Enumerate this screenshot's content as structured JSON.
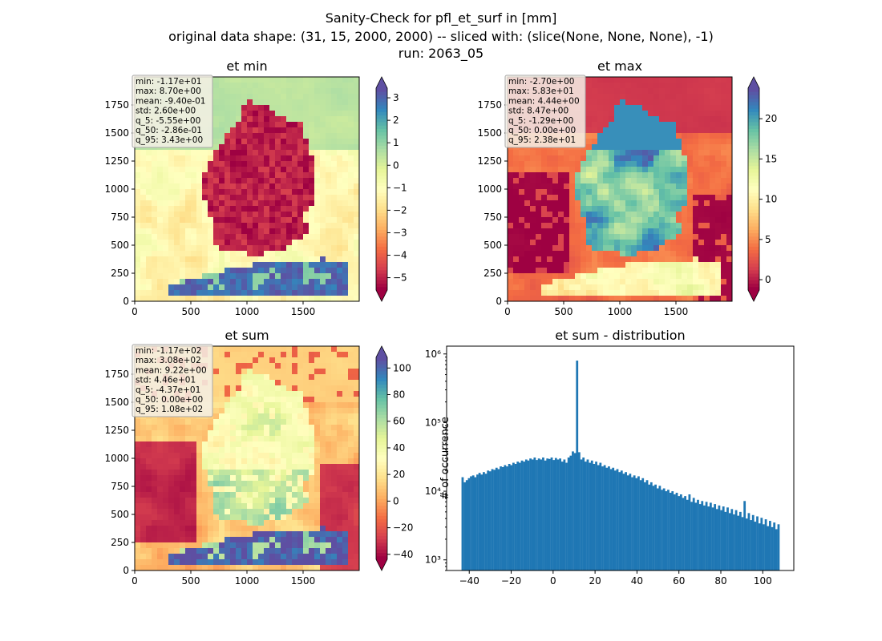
{
  "figure": {
    "title_lines": [
      "Sanity-Check for pfl_et_surf in [mm]",
      "original data shape: (31, 15, 2000, 2000) -- sliced with: (slice(None, None, None), -1)",
      "run: 2063_05"
    ]
  },
  "colors": {
    "spectral": [
      "#9e0142",
      "#d53e4f",
      "#f46d43",
      "#fdae61",
      "#fee08b",
      "#ffffbf",
      "#e6f598",
      "#abdda4",
      "#66c2a5",
      "#3288bd",
      "#5e4fa2"
    ],
    "histogram_bar": "#1f77b4",
    "stats_box_bg": "#f5f0e6"
  },
  "chart_data": [
    {
      "type": "heatmap",
      "title": "et min",
      "xlim": [
        0,
        2000
      ],
      "ylim": [
        0,
        2000
      ],
      "x_ticks": [
        "0",
        "500",
        "1000",
        "1500"
      ],
      "y_ticks": [
        "0",
        "250",
        "500",
        "750",
        "1000",
        "1250",
        "1500",
        "1750"
      ],
      "colorbar": {
        "min": -5.55,
        "max": 3.43,
        "extend": "both",
        "ticks": [
          "−5",
          "−4",
          "−3",
          "−2",
          "−1",
          "0",
          "1",
          "2",
          "3"
        ],
        "tick_values": [
          -5,
          -4,
          -3,
          -2,
          -1,
          0,
          1,
          2,
          3
        ]
      },
      "stats": [
        "min: -1.17e+01",
        "max: 8.70e+00",
        "mean: -9.40e-01",
        "std: 2.60e+00",
        "q_5: -5.55e+00",
        "q_50: -2.86e-01",
        "q_95: 3.43e+00"
      ],
      "pattern": "min"
    },
    {
      "type": "heatmap",
      "title": "et max",
      "xlim": [
        0,
        2000
      ],
      "ylim": [
        0,
        2000
      ],
      "x_ticks": [
        "0",
        "500",
        "1000",
        "1500"
      ],
      "y_ticks": [
        "0",
        "250",
        "500",
        "750",
        "1000",
        "1250",
        "1500",
        "1750"
      ],
      "colorbar": {
        "min": -1.29,
        "max": 23.8,
        "extend": "both",
        "ticks": [
          "0",
          "5",
          "10",
          "15",
          "20"
        ],
        "tick_values": [
          0,
          5,
          10,
          15,
          20
        ]
      },
      "stats": [
        "min: -2.70e+00",
        "max: 5.83e+01",
        "mean: 4.44e+00",
        "std: 8.47e+00",
        "q_5: -1.29e+00",
        "q_50: 0.00e+00",
        "q_95: 2.38e+01"
      ],
      "pattern": "max"
    },
    {
      "type": "heatmap",
      "title": "et sum",
      "xlim": [
        0,
        2000
      ],
      "ylim": [
        0,
        2000
      ],
      "x_ticks": [
        "0",
        "500",
        "1000",
        "1500"
      ],
      "y_ticks": [
        "0",
        "250",
        "500",
        "750",
        "1000",
        "1250",
        "1500",
        "1750"
      ],
      "colorbar": {
        "min": -43.7,
        "max": 108,
        "extend": "both",
        "ticks": [
          "−40",
          "−20",
          "0",
          "20",
          "40",
          "60",
          "80",
          "100"
        ],
        "tick_values": [
          -40,
          -20,
          0,
          20,
          40,
          60,
          80,
          100
        ]
      },
      "stats": [
        "min: -1.17e+02",
        "max: 3.08e+02",
        "mean: 9.22e+00",
        "std: 4.46e+01",
        "q_5: -4.37e+01",
        "q_50: 0.00e+00",
        "q_95: 1.08e+02"
      ],
      "pattern": "sum"
    },
    {
      "type": "bar",
      "title": "et sum - distribution",
      "ylabel": "# of occurrence",
      "xlabel": "",
      "yscale": "log",
      "xlim": [
        -50.8,
        114.8
      ],
      "ylim": [
        700,
        1300000
      ],
      "x_ticks": [
        "−40",
        "−20",
        "0",
        "20",
        "40",
        "60",
        "80",
        "100"
      ],
      "x_tick_values": [
        -40,
        -20,
        0,
        20,
        40,
        60,
        80,
        100
      ],
      "y_ticks": [
        "10³",
        "10⁴",
        "10⁵",
        "10⁶"
      ],
      "y_tick_values": [
        1000,
        10000,
        100000,
        1000000
      ],
      "bins": {
        "start": -43.7,
        "end": 108,
        "count": 150
      },
      "counts": [
        16000,
        13500,
        14500,
        15500,
        16500,
        17000,
        16000,
        17500,
        18500,
        17500,
        19000,
        18000,
        20000,
        19500,
        21000,
        20500,
        22000,
        21000,
        23000,
        22500,
        24000,
        23000,
        25000,
        24000,
        26000,
        25000,
        27000,
        26000,
        28000,
        27000,
        29000,
        28000,
        30000,
        29000,
        31000,
        28500,
        30000,
        29000,
        31000,
        28000,
        30000,
        29500,
        31000,
        28500,
        30500,
        29000,
        30000,
        27000,
        29000,
        26000,
        31000,
        33000,
        38000,
        36000,
        800000,
        37000,
        29000,
        31000,
        27000,
        29000,
        26000,
        28000,
        25000,
        27000,
        24000,
        26000,
        23000,
        24000,
        22000,
        23000,
        21000,
        22000,
        20000,
        21000,
        19000,
        20000,
        18000,
        19000,
        17000,
        18000,
        16000,
        17000,
        15500,
        16500,
        14500,
        15500,
        13500,
        14500,
        12500,
        13500,
        12000,
        12500,
        11000,
        12000,
        10500,
        11000,
        10000,
        10500,
        9500,
        10000,
        9000,
        9500,
        8500,
        9000,
        8000,
        8500,
        7500,
        9000,
        7000,
        8000,
        6800,
        7500,
        6500,
        7200,
        6200,
        7000,
        6000,
        6800,
        5800,
        6500,
        5500,
        6200,
        5300,
        6000,
        5000,
        5800,
        4800,
        5500,
        4600,
        5300,
        4400,
        5000,
        4200,
        7200,
        4000,
        4800,
        3800,
        4500,
        3600,
        4300,
        3400,
        4100,
        3300,
        3900,
        3100,
        3700,
        3000,
        3500,
        2800,
        3300
      ]
    }
  ]
}
